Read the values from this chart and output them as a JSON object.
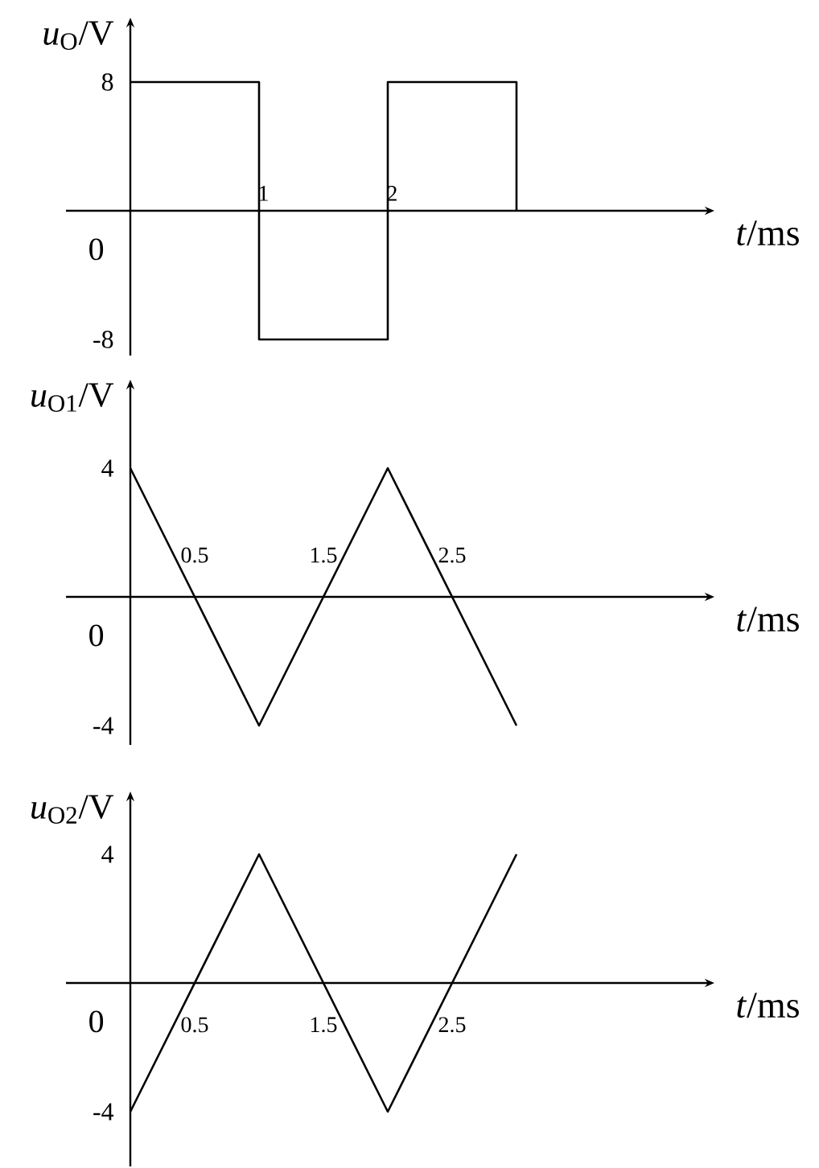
{
  "chart_data": [
    {
      "type": "step",
      "xlabel": "*t*/ms",
      "ylabel": "*u*$_{O}$/V",
      "x": [
        0,
        1,
        2,
        3
      ],
      "series": [
        {
          "color": "#000000",
          "values": [
            8,
            -8,
            8,
            0
          ]
        }
      ],
      "xlim": [
        -0.5,
        4.5
      ],
      "ylim": [
        -9,
        11.7
      ],
      "xticks": [
        1,
        2
      ],
      "yticks": [
        -8,
        8
      ],
      "annotations": [
        "0"
      ]
    },
    {
      "type": "line",
      "xlabel": "*t*/ms",
      "ylabel": "*u*$_{O1}$/V",
      "x": [
        0,
        1,
        2,
        3
      ],
      "series": [
        {
          "color": "#000000",
          "values": [
            4,
            -4,
            4,
            -4
          ]
        }
      ],
      "xlim": [
        -0.5,
        4.5
      ],
      "ylim": [
        -4.6,
        6.6
      ],
      "xticks": [
        0.5,
        1.5,
        2.5
      ],
      "yticks": [
        -4,
        4
      ],
      "annotations": [
        "0"
      ]
    },
    {
      "type": "line",
      "xlabel": "*t*/ms",
      "ylabel": "*u*$_{O2}$/V",
      "x": [
        0,
        1,
        2,
        3
      ],
      "series": [
        {
          "color": "#000000",
          "values": [
            -4,
            4,
            -4,
            4
          ]
        }
      ],
      "xlim": [
        -0.5,
        4.5
      ],
      "ylim": [
        -5.7,
        5.8
      ],
      "xticks": [
        0.5,
        1.5,
        2.5
      ],
      "yticks": [
        -4,
        4
      ],
      "annotations": [
        "0"
      ]
    }
  ]
}
